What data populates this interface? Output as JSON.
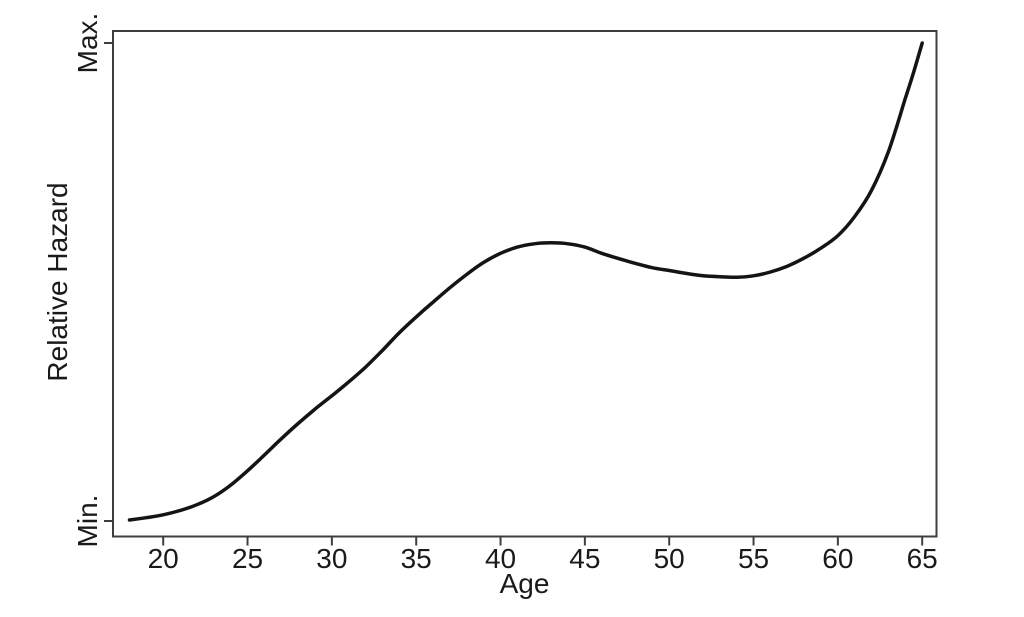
{
  "figure": {
    "background": "#ffffff"
  },
  "chart_data": {
    "type": "line",
    "title": "",
    "xlabel": "Age",
    "ylabel": "Relative Hazard",
    "x_ticks": [
      20,
      25,
      30,
      35,
      40,
      45,
      50,
      55,
      60,
      65
    ],
    "y_ticks": [
      {
        "value": 0,
        "label": "Min."
      },
      {
        "value": 1,
        "label": "Max."
      }
    ],
    "xlim": [
      17,
      66
    ],
    "ylim": [
      -0.03,
      1.03
    ],
    "grid": false,
    "legend": "none",
    "frame": "full-box",
    "line_color": "#141414",
    "axis_color": "#3f3f3f",
    "text_color": "#1a1a1a",
    "series": [
      {
        "name": "relative hazard vs age (smoothed curve)",
        "x": [
          18,
          19,
          20,
          21,
          22,
          23,
          24,
          25,
          26,
          27,
          28,
          29,
          30,
          31,
          32,
          33,
          34,
          35,
          36,
          37,
          38,
          39,
          40,
          41,
          42,
          43,
          44,
          45,
          46,
          47,
          48,
          49,
          50,
          51,
          52,
          53,
          54,
          55,
          56,
          57,
          58,
          59,
          60,
          61,
          62,
          63,
          64,
          64.5,
          65
        ],
        "y": [
          0.002,
          0.007,
          0.013,
          0.022,
          0.034,
          0.051,
          0.075,
          0.105,
          0.138,
          0.172,
          0.204,
          0.234,
          0.262,
          0.291,
          0.322,
          0.357,
          0.394,
          0.427,
          0.458,
          0.488,
          0.516,
          0.541,
          0.56,
          0.573,
          0.58,
          0.582,
          0.58,
          0.573,
          0.56,
          0.549,
          0.539,
          0.53,
          0.524,
          0.518,
          0.513,
          0.511,
          0.51,
          0.513,
          0.521,
          0.533,
          0.55,
          0.571,
          0.597,
          0.637,
          0.692,
          0.773,
          0.884,
          0.94,
          1.0
        ]
      }
    ],
    "annotations": {
      "y_axis_scale_note": "y axis has no numeric scale; only Min. and Max. tick labels"
    }
  }
}
